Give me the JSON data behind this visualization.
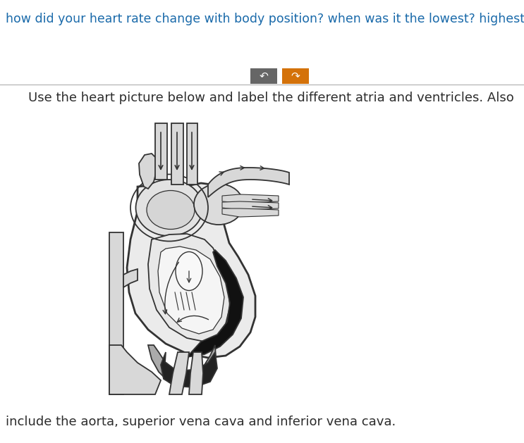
{
  "title_text": "how did your heart rate change with body position? when was it the lowest? highest?",
  "title_color": "#1a6aaa",
  "title_fontsize": 12.5,
  "body_text1": "Use the heart picture below and label the different atria and ventricles. Also",
  "body_text2": "include the aorta, superior vena cava and inferior vena cava.",
  "body_text_color": "#2c2c2c",
  "body_fontsize": 13,
  "button1_color": "#666666",
  "button2_color": "#d4720a",
  "background_color": "#ffffff",
  "divider_color": "#bbbbbb"
}
